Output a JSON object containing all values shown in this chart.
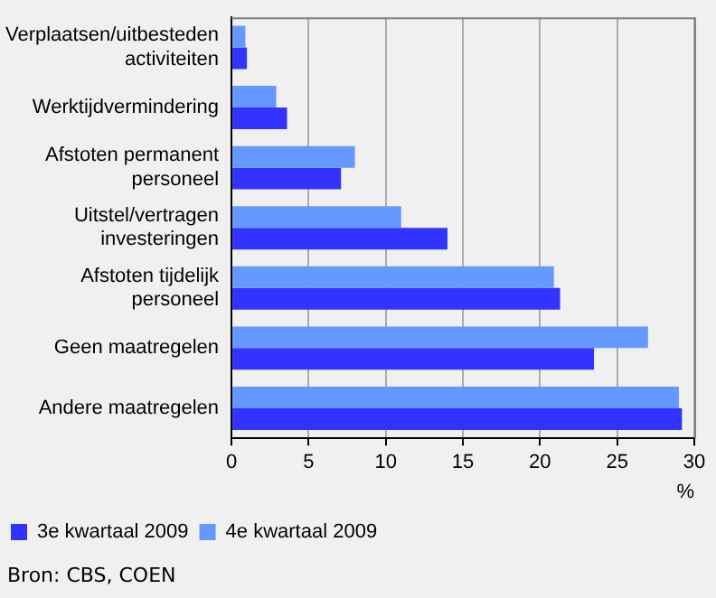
{
  "chart_data": {
    "type": "bar",
    "orientation": "horizontal",
    "categories": [
      "Verplaatsen/uitbesteden activiteiten",
      "Werktijdvermindering",
      "Afstoten permanent personeel",
      "Uitstel/vertragen investeringen",
      "Afstoten tijdelijk personeel",
      "Geen maatregelen",
      "Andere maatregelen"
    ],
    "series": [
      {
        "name": "3e kwartaal 2009",
        "color": "#3333ff",
        "values": [
          1.0,
          3.6,
          7.1,
          14.0,
          21.3,
          23.5,
          29.2
        ]
      },
      {
        "name": "4e kwartaal 2009",
        "color": "#6699ff",
        "values": [
          0.9,
          2.9,
          8.0,
          11.0,
          20.9,
          27.0,
          29.0
        ]
      }
    ],
    "xlabel": "%",
    "xlim": [
      0,
      30
    ],
    "xticks": [
      0,
      5,
      10,
      15,
      20,
      25,
      30
    ],
    "grid": "x",
    "legend": "bottom",
    "annotations": [
      "Bron: CBS, COEN"
    ]
  }
}
